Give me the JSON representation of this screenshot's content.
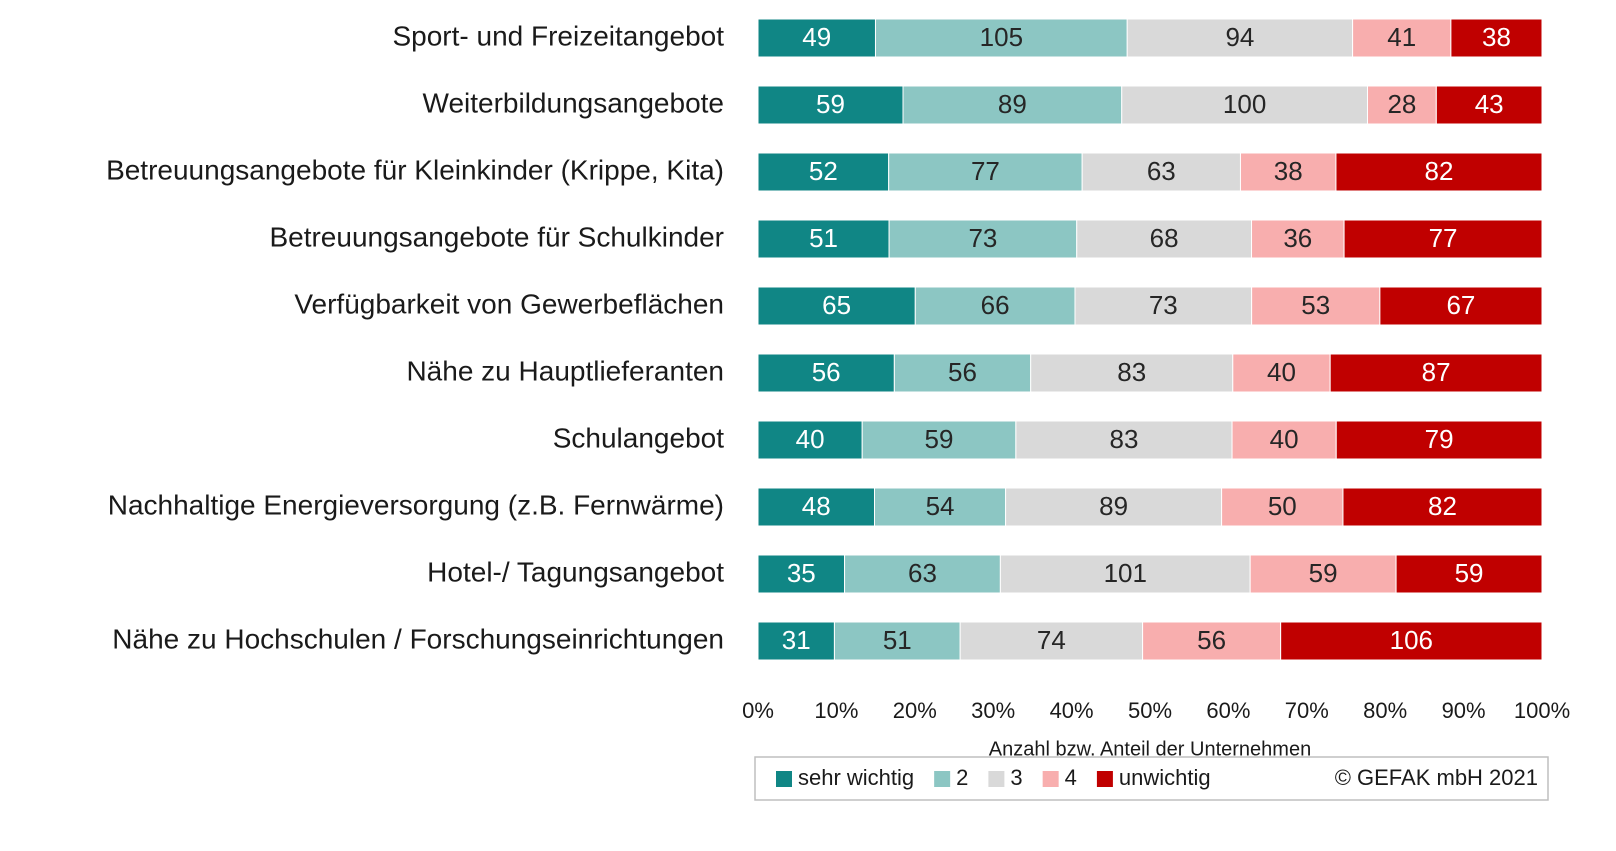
{
  "chart_data": {
    "type": "bar",
    "orientation": "horizontal",
    "stacking": "percent",
    "categories": [
      "Sport- und Freizeitangebot",
      "Weiterbildungsangebote",
      "Betreuungsangebote für Kleinkinder (Krippe, Kita)",
      "Betreuungsangebote für Schulkinder",
      "Verfügbarkeit von Gewerbeflächen",
      "Nähe zu Hauptlieferanten",
      "Schulangebot",
      "Nachhaltige Energieversorgung (z.B. Fernwärme)",
      "Hotel-/ Tagungsangebot",
      "Nähe zu Hochschulen / Forschungseinrichtungen"
    ],
    "series": [
      {
        "name": "sehr wichtig",
        "color": "#108685",
        "label_color": "#ffffff",
        "values": [
          49,
          59,
          52,
          51,
          65,
          56,
          40,
          48,
          35,
          31
        ]
      },
      {
        "name": "2",
        "color": "#8cc6c3",
        "label_color": "#262626",
        "values": [
          105,
          89,
          77,
          73,
          66,
          56,
          59,
          54,
          63,
          51
        ]
      },
      {
        "name": "3",
        "color": "#d9d9d9",
        "label_color": "#262626",
        "values": [
          94,
          100,
          63,
          68,
          73,
          83,
          83,
          89,
          101,
          74
        ]
      },
      {
        "name": "4",
        "color": "#f8aeae",
        "label_color": "#262626",
        "values": [
          41,
          28,
          38,
          36,
          53,
          40,
          40,
          50,
          59,
          56
        ]
      },
      {
        "name": "unwichtig",
        "color": "#c00000",
        "label_color": "#ffffff",
        "values": [
          38,
          43,
          82,
          77,
          67,
          87,
          79,
          82,
          59,
          106
        ]
      }
    ],
    "xlabel": "Anzahl bzw. Anteil der Unternehmen",
    "xlim": [
      0,
      100
    ],
    "xticks": [
      {
        "value": 0,
        "label": "0%"
      },
      {
        "value": 10,
        "label": "10%"
      },
      {
        "value": 20,
        "label": "20%"
      },
      {
        "value": 30,
        "label": "30%"
      },
      {
        "value": 40,
        "label": "40%"
      },
      {
        "value": 50,
        "label": "50%"
      },
      {
        "value": 60,
        "label": "60%"
      },
      {
        "value": 70,
        "label": "70%"
      },
      {
        "value": 80,
        "label": "80%"
      },
      {
        "value": 90,
        "label": "90%"
      },
      {
        "value": 100,
        "label": "100%"
      }
    ],
    "legend": "bottom",
    "annotation": "© GEFAK mbH 2021"
  }
}
